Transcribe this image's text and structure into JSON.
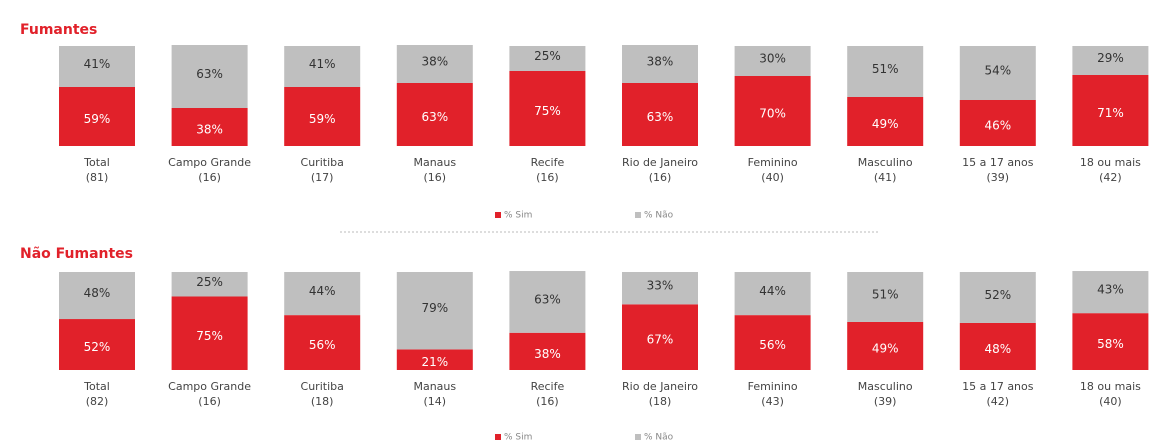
{
  "chart_data": [
    {
      "type": "stacked_bar",
      "title": "Fumantes",
      "categories": [
        [
          "Total",
          "(81)"
        ],
        [
          "Campo Grande",
          "(16)"
        ],
        [
          "Curitiba",
          "(17)"
        ],
        [
          "Manaus",
          "(16)"
        ],
        [
          "Recife",
          "(16)"
        ],
        [
          "Rio de Janeiro",
          "(16)"
        ],
        [
          "Feminino",
          "(40)"
        ],
        [
          "Masculino",
          "(41)"
        ],
        [
          "15 a 17 anos",
          "(39)"
        ],
        [
          "18 ou mais",
          "(42)"
        ]
      ],
      "ylim": [
        0,
        100
      ],
      "series": [
        {
          "name": "% Sim",
          "color": "#e1212a",
          "values": [
            59,
            38,
            59,
            63,
            75,
            63,
            70,
            49,
            46,
            71
          ],
          "value_labels": [
            "59%",
            "38%",
            "59%",
            "63%",
            "75%",
            "63%",
            "70%",
            "49%",
            "46%",
            "71%"
          ]
        },
        {
          "name": "% Não",
          "color": "#bfbfbf",
          "values": [
            41,
            63,
            41,
            38,
            25,
            38,
            30,
            51,
            54,
            29
          ],
          "value_labels": [
            "41%",
            "63%",
            "41%",
            "38%",
            "25%",
            "38%",
            "30%",
            "51%",
            "54%",
            "29%"
          ]
        }
      ]
    },
    {
      "type": "stacked_bar",
      "title": "Não Fumantes",
      "categories": [
        [
          "Total",
          "(82)"
        ],
        [
          "Campo Grande",
          "(16)"
        ],
        [
          "Curitiba",
          "(18)"
        ],
        [
          "Manaus",
          "(14)"
        ],
        [
          "Recife",
          "(16)"
        ],
        [
          "Rio de Janeiro",
          "(18)"
        ],
        [
          "Feminino",
          "(43)"
        ],
        [
          "Masculino",
          "(39)"
        ],
        [
          "15 a 17 anos",
          "(42)"
        ],
        [
          "18 ou mais",
          "(40)"
        ]
      ],
      "ylim": [
        0,
        100
      ],
      "series": [
        {
          "name": "% Sim",
          "color": "#e1212a",
          "values": [
            52,
            75,
            56,
            21,
            38,
            67,
            56,
            49,
            48,
            58
          ],
          "value_labels": [
            "52%",
            "75%",
            "56%",
            "21%",
            "38%",
            "67%",
            "56%",
            "49%",
            "48%",
            "58%"
          ]
        },
        {
          "name": "% Não",
          "color": "#bfbfbf",
          "values": [
            48,
            25,
            44,
            79,
            63,
            33,
            44,
            51,
            52,
            43
          ],
          "value_labels": [
            "48%",
            "25%",
            "44%",
            "79%",
            "63%",
            "33%",
            "44%",
            "51%",
            "52%",
            "43%"
          ]
        }
      ]
    }
  ]
}
